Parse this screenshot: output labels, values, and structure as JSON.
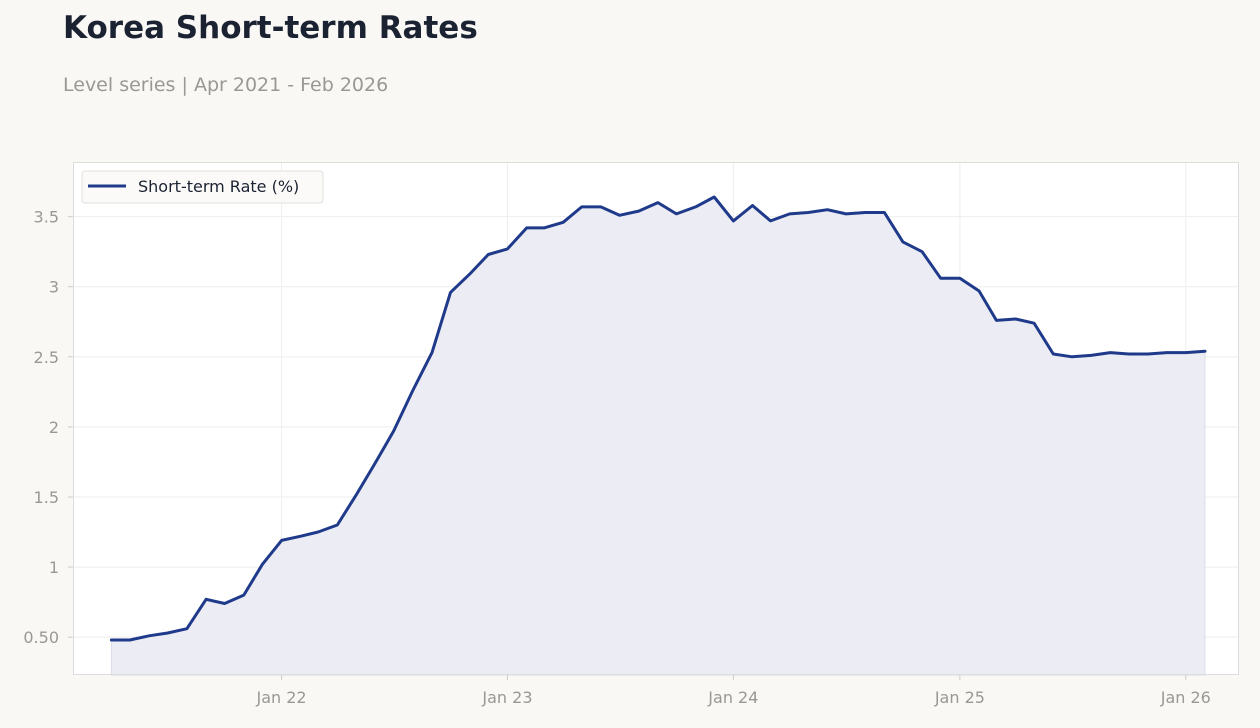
{
  "header": {
    "title": "Korea Short-term Rates",
    "subtitle": "Level series | Apr 2021 - Feb 2026"
  },
  "colors": {
    "line": "#1f3a8a",
    "fill": "#ecedf4",
    "background": "#f9f8f5",
    "plot_background": "#ffffff",
    "grid": "#eeeeee"
  },
  "chart_data": {
    "type": "area",
    "title": "Korea Short-term Rates",
    "subtitle": "Level series | Apr 2021 - Feb 2026",
    "xlabel": "",
    "ylabel": "",
    "x_ticks": [
      "Jan 22",
      "Jan 23",
      "Jan 24",
      "Jan 25",
      "Jan 26"
    ],
    "y_ticks": [
      "0.50",
      "1",
      "1.5",
      "2",
      "2.5",
      "3",
      "3.5"
    ],
    "ylim": [
      0.23,
      3.89
    ],
    "xlim": [
      "2021-01-29",
      "2026-03-28"
    ],
    "grid": true,
    "legend": {
      "position": "top-left",
      "entries": [
        "Short-term Rate (%)"
      ]
    },
    "series": [
      {
        "name": "Short-term Rate (%)",
        "x": [
          "2021-04",
          "2021-05",
          "2021-06",
          "2021-07",
          "2021-08",
          "2021-09",
          "2021-10",
          "2021-11",
          "2021-12",
          "2022-01",
          "2022-02",
          "2022-03",
          "2022-04",
          "2022-05",
          "2022-06",
          "2022-07",
          "2022-08",
          "2022-09",
          "2022-10",
          "2022-11",
          "2022-12",
          "2023-01",
          "2023-02",
          "2023-03",
          "2023-04",
          "2023-05",
          "2023-06",
          "2023-07",
          "2023-08",
          "2023-09",
          "2023-10",
          "2023-11",
          "2023-12",
          "2024-01",
          "2024-02",
          "2024-03",
          "2024-04",
          "2024-05",
          "2024-06",
          "2024-07",
          "2024-08",
          "2024-09",
          "2024-10",
          "2024-11",
          "2024-12",
          "2025-01",
          "2025-02",
          "2025-03",
          "2025-04",
          "2025-05",
          "2025-06",
          "2025-07",
          "2025-08",
          "2025-09",
          "2025-10",
          "2025-11",
          "2025-12",
          "2026-01",
          "2026-02"
        ],
        "values": [
          0.48,
          0.48,
          0.51,
          0.53,
          0.56,
          0.77,
          0.74,
          0.8,
          1.02,
          1.19,
          1.22,
          1.25,
          1.3,
          1.51,
          1.74,
          1.97,
          2.26,
          2.53,
          2.96,
          3.09,
          3.23,
          3.27,
          3.42,
          3.42,
          3.46,
          3.57,
          3.57,
          3.51,
          3.54,
          3.6,
          3.52,
          3.57,
          3.64,
          3.47,
          3.58,
          3.47,
          3.52,
          3.53,
          3.55,
          3.52,
          3.53,
          3.53,
          3.32,
          3.25,
          3.06,
          3.06,
          2.97,
          2.76,
          2.77,
          2.74,
          2.52,
          2.5,
          2.51,
          2.53,
          2.52,
          2.52,
          2.53,
          2.53,
          2.54
        ]
      }
    ]
  }
}
